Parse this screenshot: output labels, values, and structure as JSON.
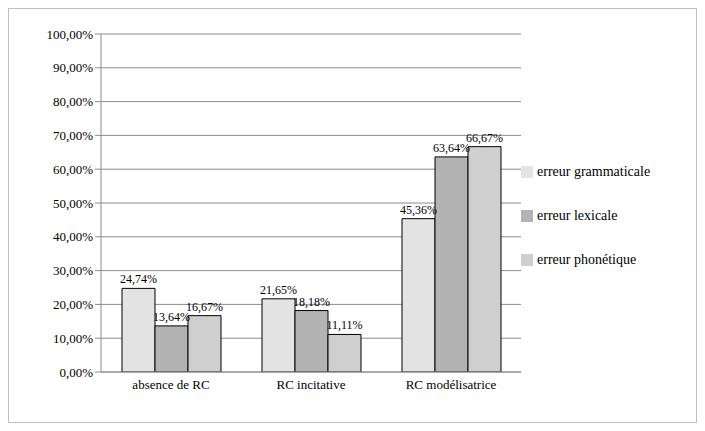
{
  "chart_data": {
    "type": "bar",
    "categories": [
      "absence de RC",
      "RC incitative",
      "RC modélisatrice"
    ],
    "series": [
      {
        "name": "erreur grammaticale",
        "color": "#e3e3e3",
        "values": [
          24.74,
          21.65,
          45.36
        ],
        "value_labels": [
          "24,74%",
          "21,65%",
          "45,36%"
        ]
      },
      {
        "name": "erreur lexicale",
        "color": "#b3b3b3",
        "values": [
          13.64,
          18.18,
          63.64
        ],
        "value_labels": [
          "13,64%",
          "18,18%",
          "63,64%"
        ]
      },
      {
        "name": "erreur phonétique",
        "color": "#cfcfcf",
        "values": [
          16.67,
          11.11,
          66.67
        ],
        "value_labels": [
          "16,67%",
          "11,11%",
          "66,67%"
        ]
      }
    ],
    "ylim": [
      0,
      100
    ],
    "yticks": [
      {
        "value": 0,
        "label": "0,00%"
      },
      {
        "value": 10,
        "label": "10,00%"
      },
      {
        "value": 20,
        "label": "20,00%"
      },
      {
        "value": 30,
        "label": "30,00%"
      },
      {
        "value": 40,
        "label": "40,00%"
      },
      {
        "value": 50,
        "label": "50,00%"
      },
      {
        "value": 60,
        "label": "60,00%"
      },
      {
        "value": 70,
        "label": "70,00%"
      },
      {
        "value": 80,
        "label": "80,00%"
      },
      {
        "value": 90,
        "label": "90,00%"
      },
      {
        "value": 100,
        "label": "100,00%"
      }
    ],
    "grid": true,
    "legend": "right",
    "data_labels": true
  }
}
